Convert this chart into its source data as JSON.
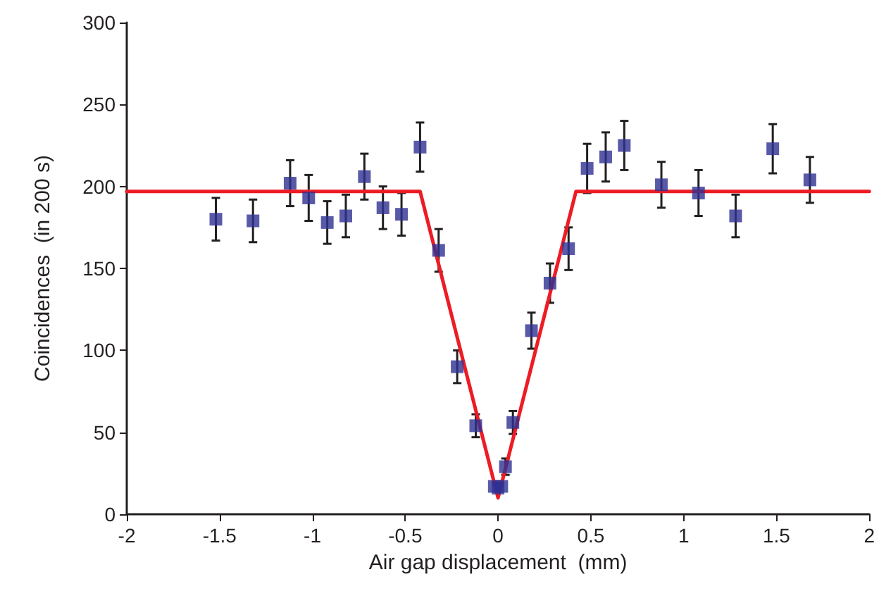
{
  "chart_data": {
    "type": "scatter",
    "xlabel": "Air gap displacement  (mm)",
    "ylabel": "Coincidences  (in 200 s)",
    "xlim": [
      -2,
      2
    ],
    "xticks": [
      -2,
      -1.5,
      -1,
      -0.5,
      0,
      0.5,
      1,
      1.5,
      2
    ],
    "ylim": [
      0,
      300
    ],
    "yticks": [
      0,
      50,
      100,
      150,
      200,
      250,
      300
    ],
    "grid": false,
    "series": [
      {
        "color": "#2e3192",
        "marker": "square",
        "x": [
          -1.52,
          -1.32,
          -1.12,
          -1.02,
          -0.92,
          -0.82,
          -0.72,
          -0.62,
          -0.52,
          -0.42,
          -0.32,
          -0.22,
          -0.12,
          -0.02,
          0,
          0.02,
          0.04,
          0.08,
          0.18,
          0.28,
          0.38,
          0.48,
          0.58,
          0.68,
          0.88,
          1.08,
          1.28,
          1.48,
          1.68
        ],
        "values": [
          180,
          179,
          202,
          193,
          178,
          182,
          206,
          187,
          183,
          224,
          161,
          90,
          54,
          17,
          16,
          17,
          29,
          56,
          112,
          141,
          162,
          211,
          218,
          225,
          201,
          196,
          182,
          223,
          204
        ],
        "errors": [
          13,
          13,
          14,
          14,
          13,
          13,
          14,
          13,
          13,
          15,
          13,
          10,
          7,
          null,
          null,
          null,
          5,
          7,
          11,
          12,
          13,
          15,
          15,
          15,
          14,
          14,
          13,
          15,
          14
        ]
      },
      {
        "type": "line",
        "color": "#ed1c24",
        "marker": "none",
        "line_style": "solid",
        "x": [
          -2,
          -0.42,
          0,
          0.42,
          2
        ],
        "values": [
          197,
          197,
          10,
          197,
          197
        ]
      }
    ]
  }
}
